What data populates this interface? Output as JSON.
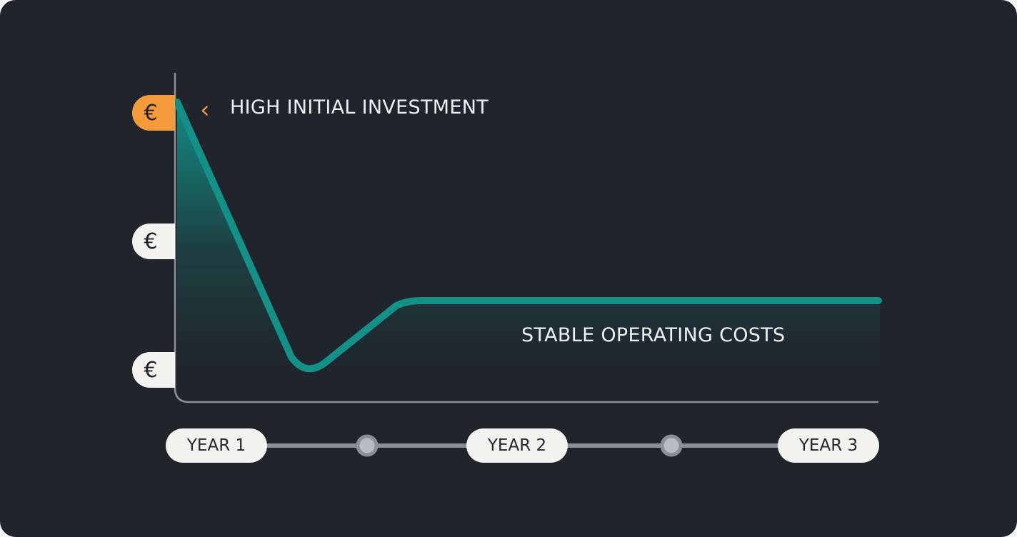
{
  "colors": {
    "background": "#20242b",
    "line": "#139087",
    "accent": "#f59a3a",
    "axis": "#8a8f9a"
  },
  "y_markers": [
    {
      "symbol": "€",
      "highlight": true
    },
    {
      "symbol": "€",
      "highlight": false
    },
    {
      "symbol": "€",
      "highlight": false
    }
  ],
  "annotations": {
    "top": "HIGH INITIAL INVESTMENT",
    "bottom": "STABLE OPERATING COSTS",
    "top_icon": "chevron-left-icon"
  },
  "timeline": [
    "YEAR 1",
    "YEAR 2",
    "YEAR 3"
  ]
}
